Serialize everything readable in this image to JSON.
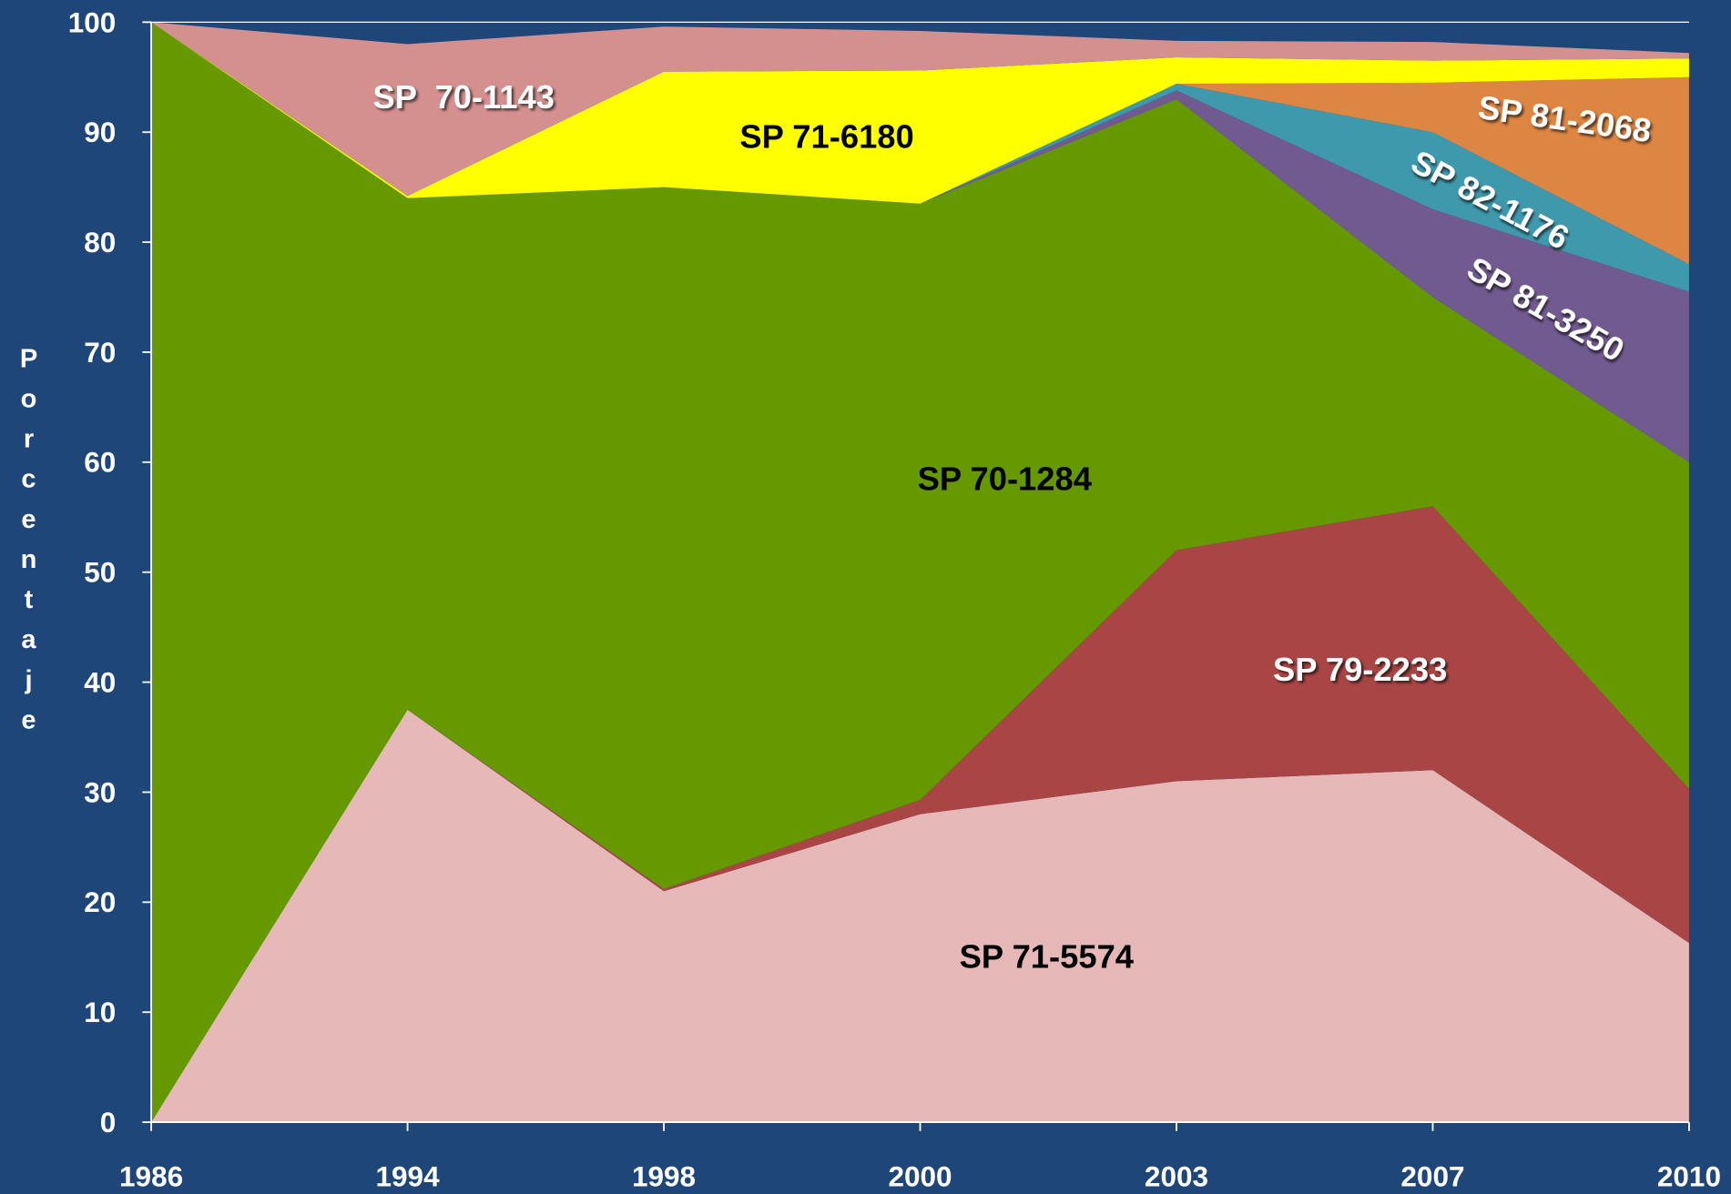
{
  "chart_data": {
    "type": "stacked_area",
    "y_label": "Porcentaje",
    "categories": [
      "1986",
      "1994",
      "1998",
      "2000",
      "2003",
      "2007",
      "2010"
    ],
    "series": [
      {
        "name": "SP 71-5574",
        "color": "#e6b8b7",
        "values": [
          0,
          37.5,
          21,
          28,
          31,
          32,
          16.3
        ]
      },
      {
        "name": "SP 79-2233",
        "color": "#a94545",
        "values": [
          0,
          0,
          0.2,
          1.3,
          21,
          24,
          14
        ]
      },
      {
        "name": "SP 70-1284",
        "color": "#669900",
        "values": [
          100,
          46.5,
          63.8,
          54.2,
          41,
          19,
          29.7
        ]
      },
      {
        "name": "SP 81-3250",
        "color": "#715a8f",
        "values": [
          0,
          0,
          0,
          0,
          0.8,
          8,
          15.5
        ]
      },
      {
        "name": "SP 82-1176",
        "color": "#3f99ad",
        "values": [
          0,
          0,
          0,
          0,
          0.6,
          7,
          2.5
        ]
      },
      {
        "name": "SP 81-2068",
        "color": "#dd8543",
        "values": [
          0,
          0,
          0,
          0,
          0,
          4.5,
          17
        ]
      },
      {
        "name": "SP 71-6180",
        "color": "#ffff00",
        "values": [
          0,
          0.2,
          10.5,
          12.1,
          2.4,
          2,
          1.7
        ]
      },
      {
        "name": "SP  70-1143",
        "color": "#d4908f",
        "values": [
          0,
          13.8,
          4.1,
          3.6,
          1.5,
          1.7,
          0.5
        ]
      }
    ],
    "ylim": [
      0,
      100
    ],
    "yticks": [
      0,
      10,
      20,
      30,
      40,
      50,
      60,
      70,
      80,
      90,
      100
    ],
    "grid": false
  }
}
